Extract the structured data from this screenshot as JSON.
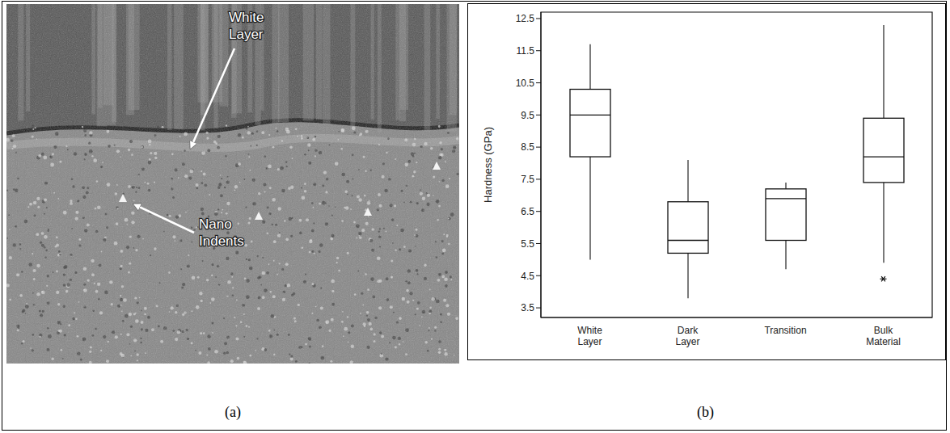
{
  "figure": {
    "panel_labels": [
      "(a)",
      "(b)"
    ],
    "image_annotations": [
      "White Layer",
      "Nano Indents"
    ]
  },
  "chart_data": {
    "type": "box",
    "categories": [
      "White Layer",
      "Dark Layer",
      "Transition",
      "Bulk Material"
    ],
    "y_label": "Hardness (GPa)",
    "whisker_low": [
      5.0,
      3.8,
      4.7,
      4.9
    ],
    "q1": [
      8.2,
      5.2,
      5.6,
      7.4
    ],
    "median": [
      9.5,
      5.6,
      6.9,
      8.2
    ],
    "q3": [
      10.3,
      6.8,
      7.2,
      9.4
    ],
    "whisker_high": [
      11.7,
      8.1,
      7.4,
      12.3
    ],
    "outliers": [
      [],
      [],
      [],
      [
        4.4
      ]
    ],
    "marker": "asterisk",
    "ylim": [
      3.2,
      12.7
    ],
    "yticks": [
      3.5,
      4.5,
      5.5,
      6.5,
      7.5,
      8.5,
      9.5,
      10.5,
      11.5,
      12.5
    ],
    "grid": false
  }
}
